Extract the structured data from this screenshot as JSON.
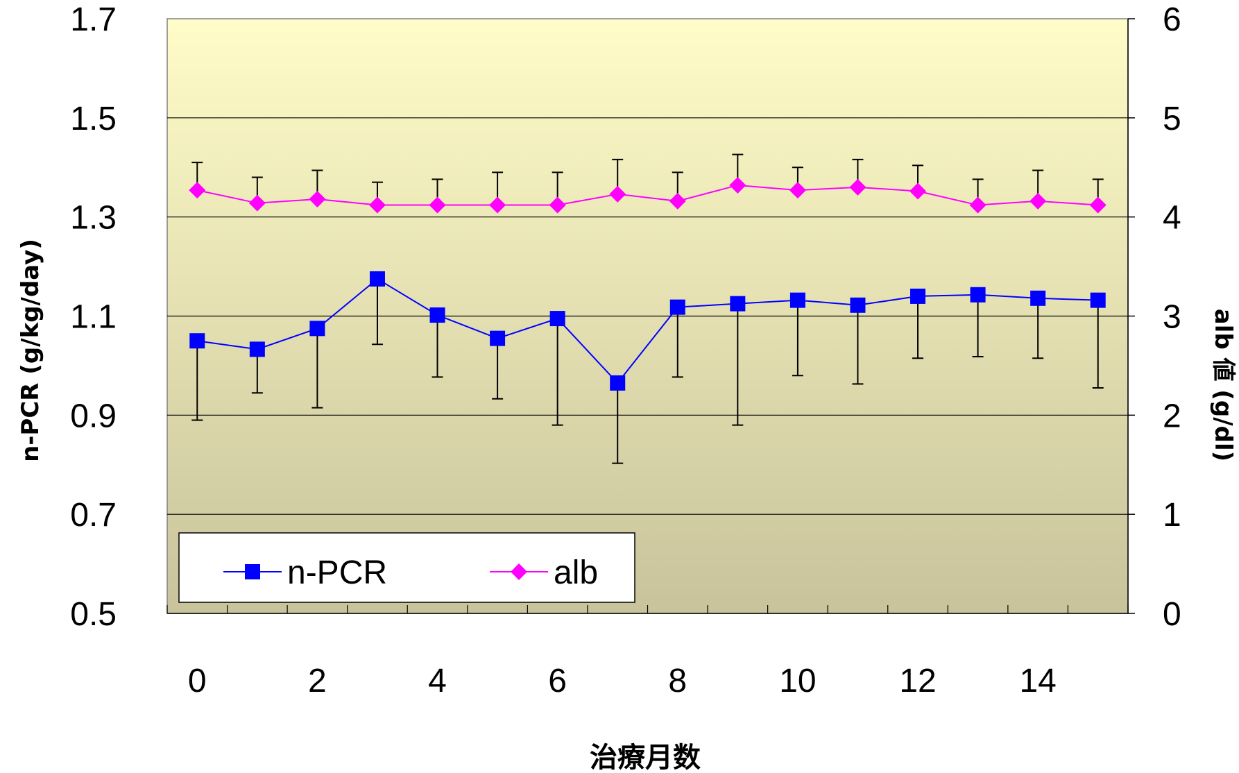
{
  "chart_data": {
    "type": "line",
    "xlabel": "治療月数",
    "ylabel_left": "n-PCR (g/kg/day)",
    "ylabel_right": "alb 値 (g/dl)",
    "x": [
      0,
      1,
      2,
      3,
      4,
      5,
      6,
      7,
      8,
      9,
      10,
      11,
      12,
      13,
      14,
      15
    ],
    "x_tick_labels": [
      "0",
      "2",
      "4",
      "6",
      "8",
      "10",
      "12",
      "14"
    ],
    "x_tick_values": [
      0,
      2,
      4,
      6,
      8,
      10,
      12,
      14
    ],
    "ylim_left": [
      0.5,
      1.7
    ],
    "ylim_right": [
      0,
      6
    ],
    "y_ticks_left": [
      "0.5",
      "0.7",
      "0.9",
      "1.1",
      "1.3",
      "1.5",
      "1.7"
    ],
    "y_ticks_right": [
      "0",
      "1",
      "2",
      "3",
      "4",
      "5",
      "6"
    ],
    "grid": true,
    "legend_position": "bottom-left",
    "series": [
      {
        "name": "n-PCR",
        "axis": "left",
        "color": "#0000FF",
        "marker": "square",
        "values": [
          1.05,
          1.033,
          1.075,
          1.175,
          1.102,
          1.055,
          1.095,
          0.965,
          1.118,
          1.125,
          1.132,
          1.122,
          1.14,
          1.143,
          1.136,
          1.132
        ],
        "error_low": [
          0.89,
          0.945,
          0.915,
          1.043,
          0.977,
          0.933,
          0.88,
          0.803,
          0.977,
          0.88,
          0.98,
          0.963,
          1.015,
          1.018,
          1.015,
          0.955
        ],
        "error_high": null
      },
      {
        "name": "alb",
        "axis": "right",
        "color": "#FF00FF",
        "marker": "diamond",
        "values": [
          4.27,
          4.14,
          4.18,
          4.12,
          4.12,
          4.12,
          4.12,
          4.23,
          4.16,
          4.32,
          4.27,
          4.3,
          4.26,
          4.12,
          4.16,
          4.12
        ],
        "error_high": [
          4.55,
          4.4,
          4.47,
          4.35,
          4.38,
          4.45,
          4.45,
          4.58,
          4.45,
          4.63,
          4.5,
          4.58,
          4.52,
          4.38,
          4.47,
          4.38
        ],
        "error_low": null
      }
    ]
  }
}
